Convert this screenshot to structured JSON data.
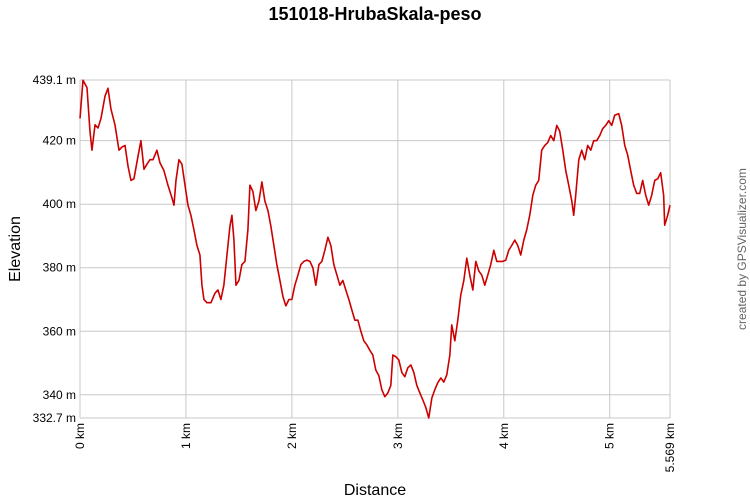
{
  "chart_data": {
    "type": "line",
    "title": "151018-HrubaSkala-peso",
    "x_label": "Distance",
    "y_label": "Elevation",
    "credit": "created by GPSVisualizer.com",
    "color": "#cc0000",
    "grid": true,
    "xlim": [
      0,
      5.569
    ],
    "ylim": [
      332.7,
      439.1
    ],
    "xticks": [
      {
        "value": 0,
        "label": "0 km"
      },
      {
        "value": 1,
        "label": "1 km"
      },
      {
        "value": 2,
        "label": "2 km"
      },
      {
        "value": 3,
        "label": "3 km"
      },
      {
        "value": 4,
        "label": "4 km"
      },
      {
        "value": 5,
        "label": "5 km"
      },
      {
        "value": 5.569,
        "label": "5.569 km"
      }
    ],
    "yticks": [
      {
        "value": 332.7,
        "label": "332.7 m"
      },
      {
        "value": 340,
        "label": "340 m"
      },
      {
        "value": 360,
        "label": "360 m"
      },
      {
        "value": 380,
        "label": "380 m"
      },
      {
        "value": 400,
        "label": "400 m"
      },
      {
        "value": 420,
        "label": "420 m"
      },
      {
        "value": 439.1,
        "label": "439.1 m"
      }
    ],
    "x": [
      0,
      0.028,
      0.066,
      0.094,
      0.113,
      0.142,
      0.17,
      0.198,
      0.236,
      0.264,
      0.292,
      0.33,
      0.368,
      0.396,
      0.425,
      0.453,
      0.481,
      0.509,
      0.547,
      0.575,
      0.604,
      0.632,
      0.66,
      0.689,
      0.726,
      0.755,
      0.792,
      0.83,
      0.868,
      0.887,
      0.906,
      0.934,
      0.962,
      0.991,
      1.019,
      1.047,
      1.075,
      1.104,
      1.132,
      1.151,
      1.17,
      1.198,
      1.236,
      1.274,
      1.302,
      1.33,
      1.358,
      1.387,
      1.415,
      1.434,
      1.453,
      1.472,
      1.5,
      1.528,
      1.557,
      1.585,
      1.604,
      1.632,
      1.66,
      1.689,
      1.717,
      1.745,
      1.774,
      1.802,
      1.83,
      1.858,
      1.887,
      1.915,
      1.943,
      1.972,
      2.0,
      2.028,
      2.057,
      2.085,
      2.113,
      2.142,
      2.17,
      2.198,
      2.226,
      2.255,
      2.283,
      2.311,
      2.34,
      2.368,
      2.396,
      2.425,
      2.453,
      2.481,
      2.509,
      2.538,
      2.566,
      2.594,
      2.623,
      2.651,
      2.679,
      2.708,
      2.736,
      2.764,
      2.792,
      2.821,
      2.849,
      2.877,
      2.906,
      2.934,
      2.953,
      2.981,
      3.009,
      3.038,
      3.066,
      3.094,
      3.123,
      3.151,
      3.179,
      3.208,
      3.236,
      3.264,
      3.292,
      3.321,
      3.349,
      3.377,
      3.406,
      3.434,
      3.462,
      3.491,
      3.509,
      3.538,
      3.566,
      3.594,
      3.623,
      3.651,
      3.679,
      3.708,
      3.736,
      3.764,
      3.792,
      3.821,
      3.849,
      3.877,
      3.906,
      3.934,
      3.962,
      3.991,
      4.019,
      4.047,
      4.075,
      4.104,
      4.132,
      4.16,
      4.189,
      4.217,
      4.245,
      4.274,
      4.302,
      4.33,
      4.358,
      4.387,
      4.415,
      4.443,
      4.472,
      4.5,
      4.528,
      4.557,
      4.585,
      4.613,
      4.642,
      4.66,
      4.679,
      4.708,
      4.736,
      4.764,
      4.792,
      4.821,
      4.849,
      4.877,
      4.906,
      4.934,
      4.962,
      4.991,
      5.019,
      5.047,
      5.085,
      5.113,
      5.142,
      5.17,
      5.198,
      5.226,
      5.255,
      5.283,
      5.311,
      5.34,
      5.368,
      5.396,
      5.425,
      5.453,
      5.481,
      5.509,
      5.519,
      5.547,
      5.569
    ],
    "values": [
      427,
      439,
      436.7,
      423,
      417,
      425,
      424,
      427,
      434,
      436.5,
      430,
      425,
      417,
      418,
      418.5,
      412,
      407.5,
      408,
      415,
      420,
      411,
      412.6,
      414,
      414,
      417,
      413,
      410.6,
      406,
      402,
      399.7,
      407.5,
      414,
      412.6,
      406,
      399.7,
      396.5,
      392,
      387,
      384,
      374.5,
      370,
      369,
      369,
      372,
      373,
      370,
      374.5,
      384,
      393,
      396.5,
      388.7,
      374.5,
      376,
      381,
      382,
      392,
      406,
      404,
      398,
      401,
      407,
      401,
      398,
      393,
      387,
      381,
      376,
      371,
      368,
      370,
      370,
      374.5,
      377.7,
      381,
      382,
      382.4,
      382,
      380,
      374.5,
      381,
      382,
      385.5,
      389.6,
      387,
      381,
      377.7,
      374.5,
      376,
      373,
      370,
      366.7,
      363.5,
      363.5,
      360,
      357,
      355.7,
      354,
      352.5,
      347.8,
      346,
      341.6,
      339.4,
      340.6,
      343,
      352.5,
      352,
      351,
      347,
      345.7,
      348.5,
      349.4,
      347,
      343,
      340.6,
      338.4,
      336,
      332.7,
      339,
      341.6,
      343.8,
      345.3,
      344,
      346.3,
      352.5,
      362,
      357,
      363.5,
      371.4,
      376,
      383,
      377.7,
      373,
      382,
      379,
      377.7,
      374.5,
      377.7,
      381,
      385.5,
      382,
      382,
      382,
      382.4,
      385.5,
      387,
      388.7,
      387,
      384,
      388.7,
      392,
      396.5,
      402.8,
      406,
      407.5,
      417,
      418.5,
      419.4,
      421.6,
      420,
      424.8,
      423,
      417,
      410.6,
      406,
      401,
      396.5,
      402.8,
      414,
      417,
      414,
      418.5,
      417,
      420,
      420,
      421.6,
      423.8,
      424.8,
      426.3,
      424.8,
      428,
      428.5,
      424.8,
      418.5,
      415.4,
      410.6,
      406,
      403.4,
      403.4,
      407.5,
      402.8,
      399.7,
      402.8,
      407.5,
      408,
      409.9,
      402.8,
      393.4,
      396.5,
      399.7
    ]
  }
}
